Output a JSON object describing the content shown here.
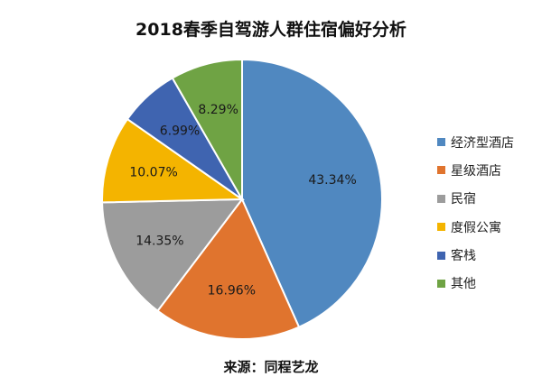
{
  "chart_data": {
    "type": "pie",
    "title": "2018春季自驾游人群住宿偏好分析",
    "categories": [
      "经济型酒店",
      "星级酒店",
      "民宿",
      "度假公寓",
      "客栈",
      "其他"
    ],
    "values": [
      43.34,
      16.96,
      14.35,
      10.07,
      6.99,
      8.29
    ],
    "value_labels": [
      "43.34%",
      "16.96%",
      "14.35%",
      "10.07%",
      "6.99%",
      "8.29%"
    ],
    "colors": [
      "#5088C0",
      "#E0742E",
      "#9C9C9C",
      "#F4B400",
      "#3F64B0",
      "#6FA344"
    ],
    "start": "12 o'clock",
    "direction": "clockwise",
    "legend_position": "right"
  },
  "source": "来源：同程艺龙"
}
